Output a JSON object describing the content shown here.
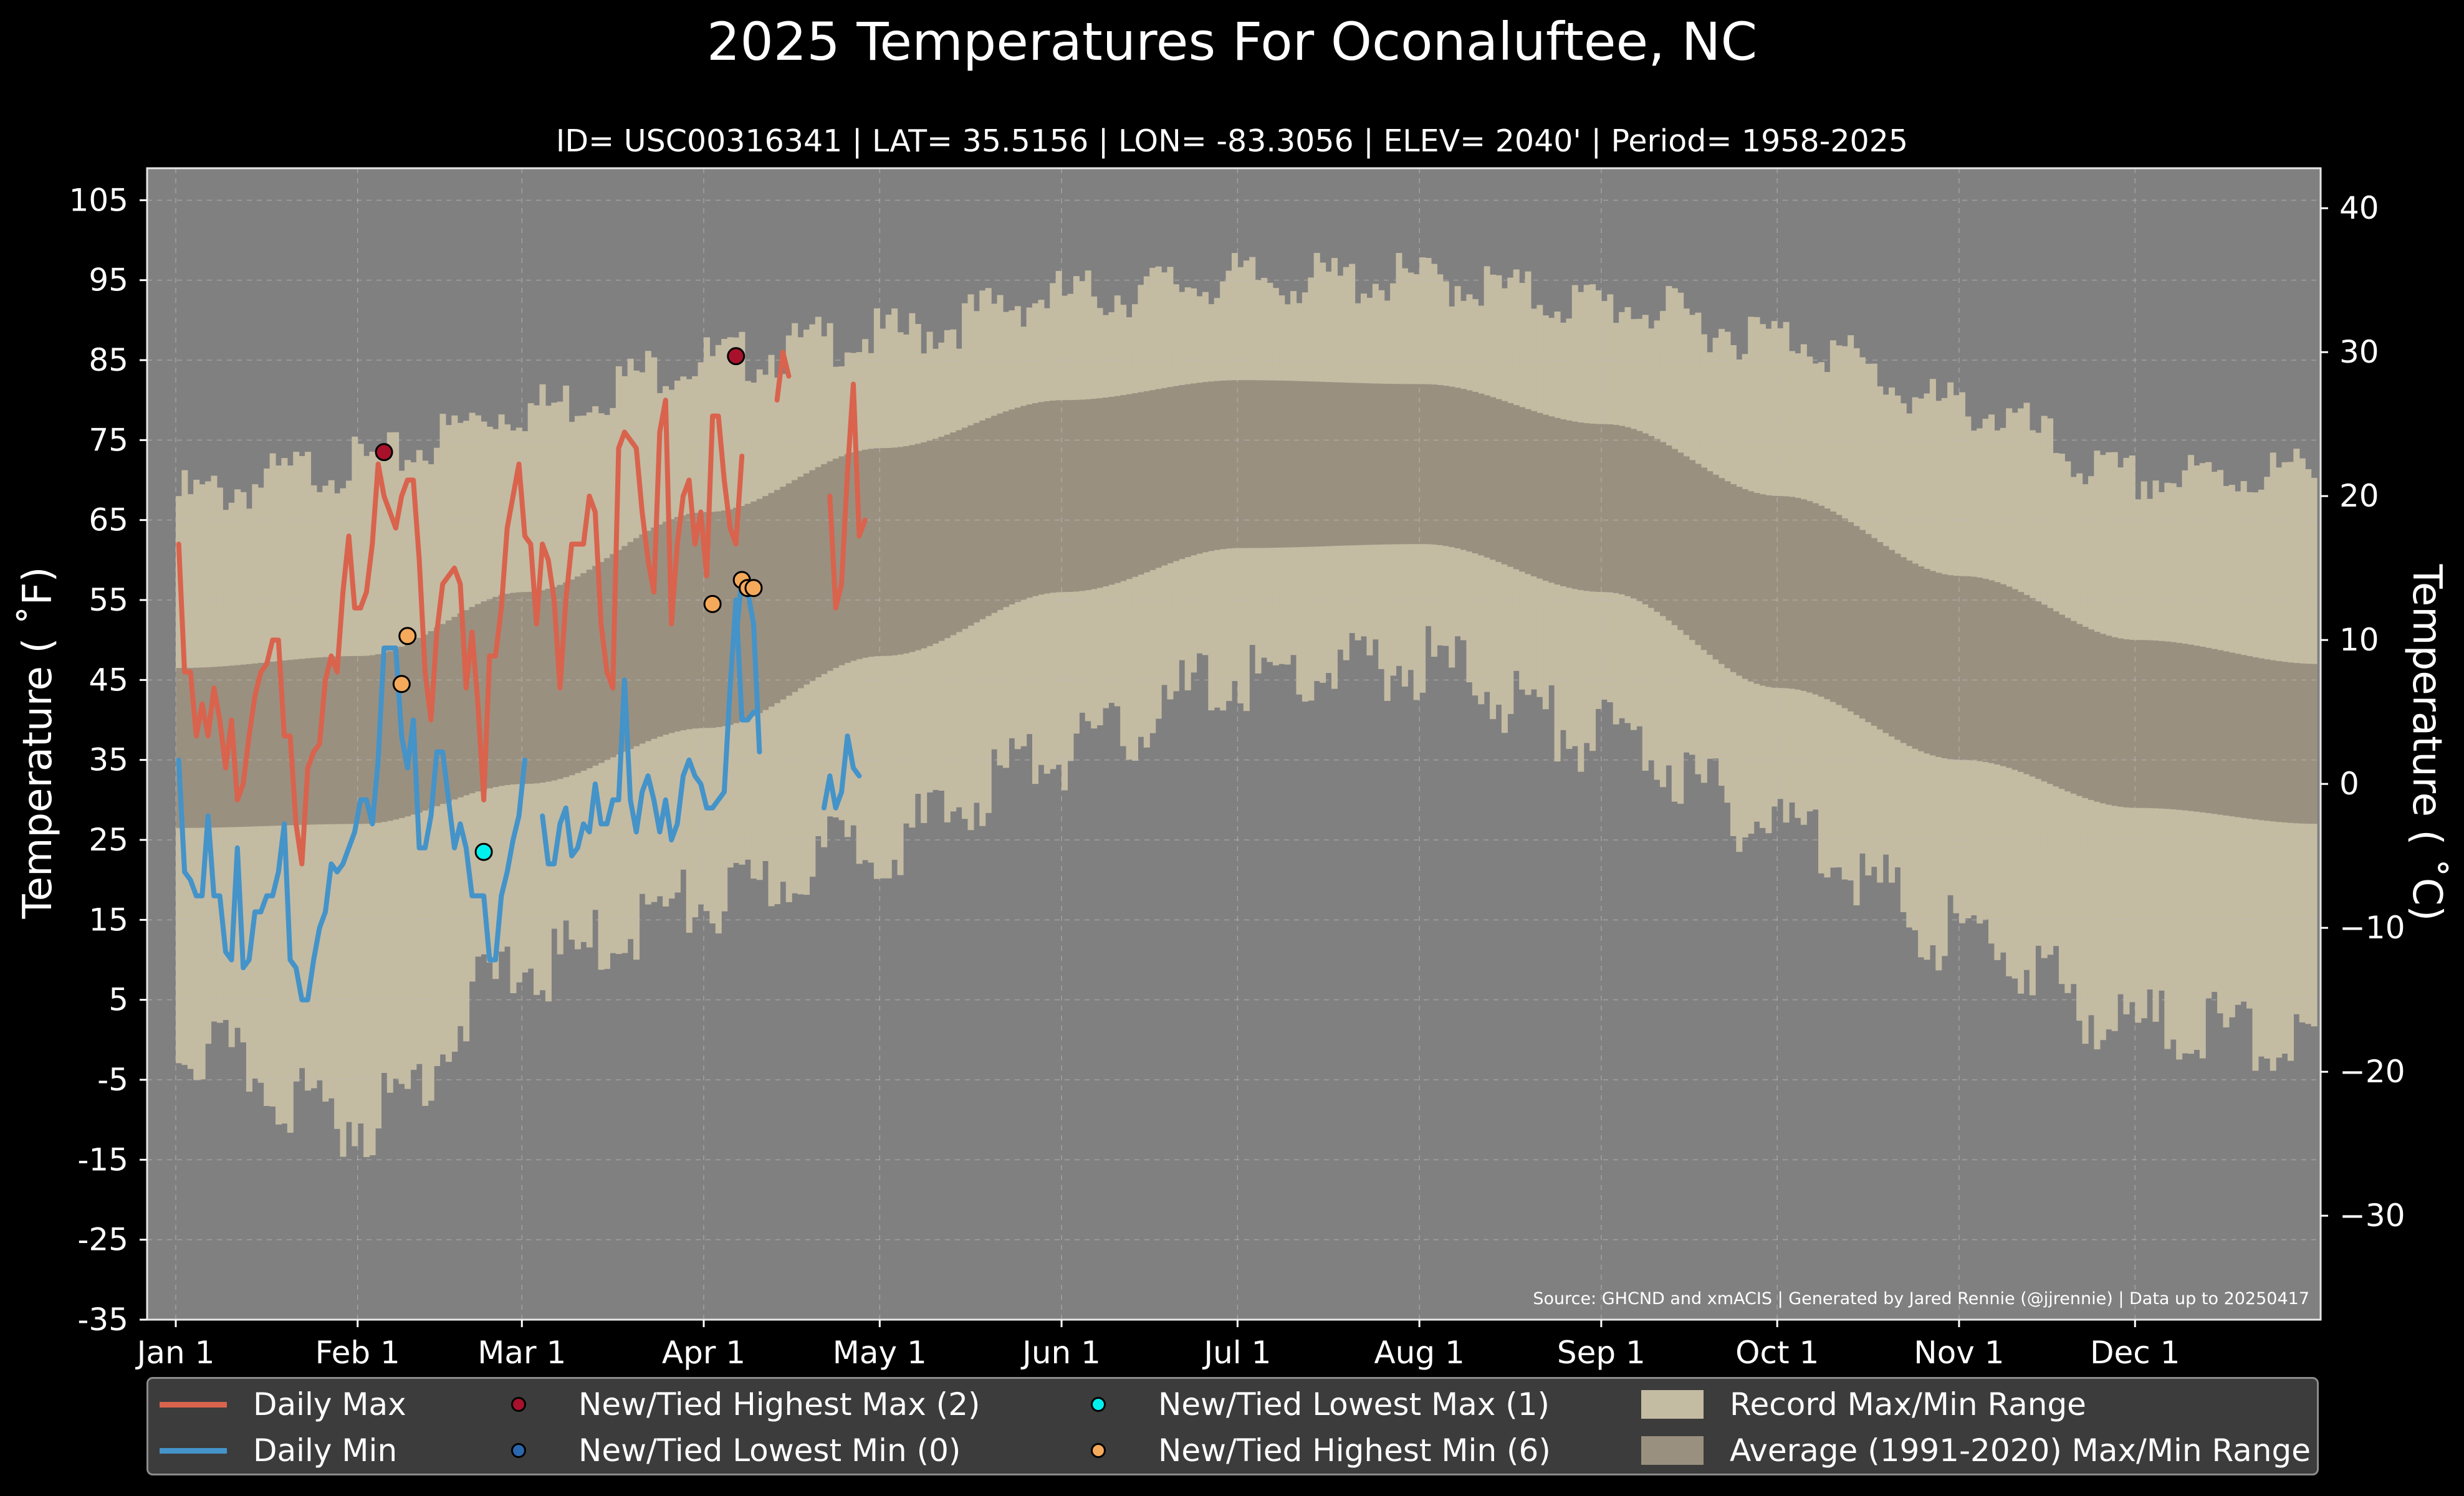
{
  "chart_data": {
    "type": "area",
    "title": "2025 Temperatures For Oconaluftee, NC",
    "subtitle": "ID= USC00316341 | LAT= 35.5156 | LON= -83.3056 | ELEV= 2040' | Period= 1958-2025",
    "ylabel": "Temperature ( ˚F)",
    "ylabel_right": "Temperature ( ˚C)",
    "ylim": [
      -35,
      109
    ],
    "yticks": [
      "105",
      "95",
      "85",
      "75",
      "65",
      "55",
      "45",
      "35",
      "25",
      "15",
      "5",
      "-5",
      "-15",
      "-25",
      "-35"
    ],
    "yticks_c": [
      "40",
      "30",
      "20",
      "10",
      "0",
      "−10",
      "−20",
      "−30"
    ],
    "xticks": [
      "Jan 1",
      "Feb 1",
      "Mar 1",
      "Apr 1",
      "May 1",
      "Jun 1",
      "Jul 1",
      "Aug 1",
      "Sep 1",
      "Oct 1",
      "Nov 1",
      "Dec 1"
    ],
    "source": "Source: GHCND and xmACIS | Generated by Jared Rennie (@jjrennie) | Data up to 20250417",
    "record_max_monthly": [
      68,
      72,
      79,
      85,
      88,
      93,
      95,
      95,
      92,
      88,
      79,
      70,
      71
    ],
    "record_min_monthly": [
      -1,
      -10,
      9,
      17,
      25,
      36,
      45,
      47,
      38,
      27,
      13,
      2,
      0
    ],
    "normal_max_monthly": [
      46.5,
      48,
      56,
      66,
      74,
      80,
      82.5,
      82,
      77,
      68,
      58,
      50,
      47
    ],
    "normal_min_monthly": [
      26.5,
      27,
      32,
      39,
      48,
      56,
      61.5,
      62,
      56,
      44,
      35,
      29,
      27
    ],
    "series": [
      {
        "name": "Daily Max",
        "color": "#d9634d",
        "values": [
          62,
          46,
          46,
          38,
          42,
          38,
          44,
          40,
          34,
          40,
          30,
          32,
          38,
          43,
          46,
          47,
          50,
          50,
          38,
          38,
          27,
          22,
          34,
          36,
          37,
          45,
          48,
          46,
          56,
          63,
          54,
          54,
          56,
          62,
          72,
          68,
          66,
          64,
          68,
          70,
          70,
          60,
          46,
          40,
          51,
          57,
          58,
          59,
          57,
          44,
          51,
          42,
          30,
          48,
          48,
          54,
          64,
          68,
          72,
          63,
          62,
          52,
          62,
          60,
          55,
          44,
          55,
          62,
          62,
          62,
          68,
          66,
          52,
          46,
          44,
          74,
          76,
          75,
          74,
          66,
          60,
          56,
          76,
          80,
          52,
          62,
          68,
          70,
          62,
          66,
          58,
          78,
          78,
          70,
          64,
          62,
          73,
          null,
          null,
          null,
          null,
          null,
          80,
          86,
          83,
          null,
          null,
          null,
          null,
          null,
          null,
          68,
          54,
          57,
          71,
          82,
          63,
          65
        ]
      },
      {
        "name": "Daily Min",
        "color": "#4493c9",
        "values": [
          35,
          21,
          20,
          18,
          18,
          28,
          18,
          18,
          11,
          10,
          24,
          9,
          10,
          16,
          16,
          18,
          18,
          21,
          27,
          10,
          9,
          5,
          5,
          10,
          14,
          16,
          22,
          21,
          22,
          24,
          26,
          30,
          30,
          27,
          35,
          49,
          49,
          49,
          38,
          34,
          40,
          24,
          24,
          28,
          36,
          36,
          30,
          24,
          27,
          24,
          18,
          18,
          18,
          10,
          10,
          18,
          21,
          25,
          28,
          35,
          null,
          null,
          28,
          22,
          22,
          27,
          29,
          23,
          24,
          27,
          26,
          32,
          27,
          27,
          30,
          30,
          45,
          30,
          26,
          31,
          33,
          30,
          26,
          30,
          25,
          27,
          33,
          35,
          33,
          32,
          29,
          29,
          30,
          31,
          44,
          55,
          40,
          40,
          41,
          null,
          null,
          null,
          null,
          null,
          null,
          null,
          null,
          null,
          null,
          null,
          null,
          null,
          null,
          null,
          null,
          null,
          null,
          null,
          null,
          null,
          null,
          null,
          null,
          null,
          null,
          null,
          null,
          null,
          null,
          null,
          null,
          null,
          null,
          null,
          null,
          null,
          null,
          null,
          null,
          null,
          null,
          null,
          null,
          null,
          null,
          null,
          null,
          null,
          null,
          null,
          null,
          null,
          null,
          null,
          null,
          null,
          null,
          null,
          null,
          null,
          null,
          null,
          null,
          null,
          null,
          null,
          null,
          null,
          null,
          null,
          null,
          null,
          null,
          null,
          null,
          null,
          null,
          null,
          null,
          null,
          null,
          null,
          null,
          null,
          null,
          null,
          null,
          null,
          null,
          null,
          null,
          null,
          null,
          null,
          null,
          null,
          null,
          null,
          null,
          null,
          null,
          null,
          null,
          null,
          null,
          null,
          null,
          null,
          null,
          null,
          null,
          null,
          null,
          null,
          null,
          null,
          null,
          null,
          null,
          null,
          null,
          null,
          null,
          null,
          null,
          null,
          null,
          null,
          null,
          null,
          null,
          null,
          null,
          null,
          null,
          null,
          null,
          null,
          null,
          null,
          null,
          null,
          null,
          null,
          null,
          null,
          null,
          null,
          null,
          null,
          null,
          null,
          null,
          null,
          null,
          null,
          null,
          null,
          null,
          null,
          null,
          null,
          null,
          null,
          null,
          null,
          null,
          null,
          null,
          null,
          null,
          null,
          null,
          null,
          null,
          null,
          null,
          null,
          null,
          null,
          null,
          null,
          null,
          null,
          null,
          null,
          null,
          null,
          null,
          null,
          null,
          null,
          null,
          null,
          null,
          null,
          null,
          null,
          null,
          null,
          null,
          null,
          null,
          null,
          null,
          null,
          null,
          null,
          null,
          null,
          null,
          null,
          null,
          null,
          null,
          null,
          null,
          null,
          null,
          null,
          null,
          null,
          null,
          null,
          null,
          null,
          null,
          null,
          null,
          null,
          null,
          null,
          null,
          null,
          null,
          null,
          null,
          null,
          null,
          null,
          null,
          null,
          null,
          null,
          null,
          null,
          null,
          null,
          null,
          null,
          null,
          null,
          null,
          null,
          null,
          null,
          null,
          null,
          null,
          null,
          null,
          null
        ]
      }
    ],
    "min_tail": {
      "start_day": 95,
      "values": [
        50,
        58,
        56,
        52,
        36,
        null,
        null,
        null,
        null,
        null,
        null,
        null,
        null,
        null,
        null,
        29,
        33,
        29,
        31,
        38,
        34,
        33
      ]
    },
    "markers": [
      {
        "name": "New/Tied Highest Max",
        "day": 35,
        "value": 73.5,
        "color": "#a8112b"
      },
      {
        "name": "New/Tied Highest Max",
        "day": 95,
        "value": 85.5,
        "color": "#a8112b"
      },
      {
        "name": "New/Tied Lowest Max",
        "day": 52,
        "value": 23.5,
        "color": "#00f0ee"
      },
      {
        "name": "New/Tied Highest Min",
        "day": 38,
        "value": 44.5,
        "color": "#f5a95b"
      },
      {
        "name": "New/Tied Highest Min",
        "day": 39,
        "value": 50.5,
        "color": "#f5a95b"
      },
      {
        "name": "New/Tied Highest Min",
        "day": 91,
        "value": 54.5,
        "color": "#f5a95b"
      },
      {
        "name": "New/Tied Highest Min",
        "day": 96,
        "value": 57.5,
        "color": "#f5a95b"
      },
      {
        "name": "New/Tied Highest Min",
        "day": 97,
        "value": 56.5,
        "color": "#f5a95b"
      },
      {
        "name": "New/Tied Highest Min",
        "day": 98,
        "value": 56.5,
        "color": "#f5a95b"
      }
    ],
    "colors": {
      "figure_bg": "#000000",
      "axes_bg": "#808080",
      "record_range": "#c4bba3",
      "normal_range": "#9a9080",
      "grid": "#bdbdbd"
    },
    "grid": true,
    "legend_position": "bottom"
  },
  "legend": {
    "items": [
      {
        "label": "Daily Max",
        "kind": "line",
        "color": "#d9634d"
      },
      {
        "label": "Daily Min",
        "kind": "line",
        "color": "#4493c9"
      },
      {
        "label": "New/Tied Highest Max (2)",
        "kind": "dot",
        "color": "#a8112b"
      },
      {
        "label": "New/Tied Lowest Min (0)",
        "kind": "dot",
        "color": "#2a67ad"
      },
      {
        "label": "New/Tied Lowest Max (1)",
        "kind": "dot",
        "color": "#00f0ee"
      },
      {
        "label": "New/Tied Highest Min (6)",
        "kind": "dot",
        "color": "#f5a95b"
      },
      {
        "label": "Record Max/Min Range",
        "kind": "patch",
        "color": "#c4bba3"
      },
      {
        "label": "Average (1991-2020) Max/Min Range",
        "kind": "patch",
        "color": "#9a9080"
      }
    ]
  }
}
